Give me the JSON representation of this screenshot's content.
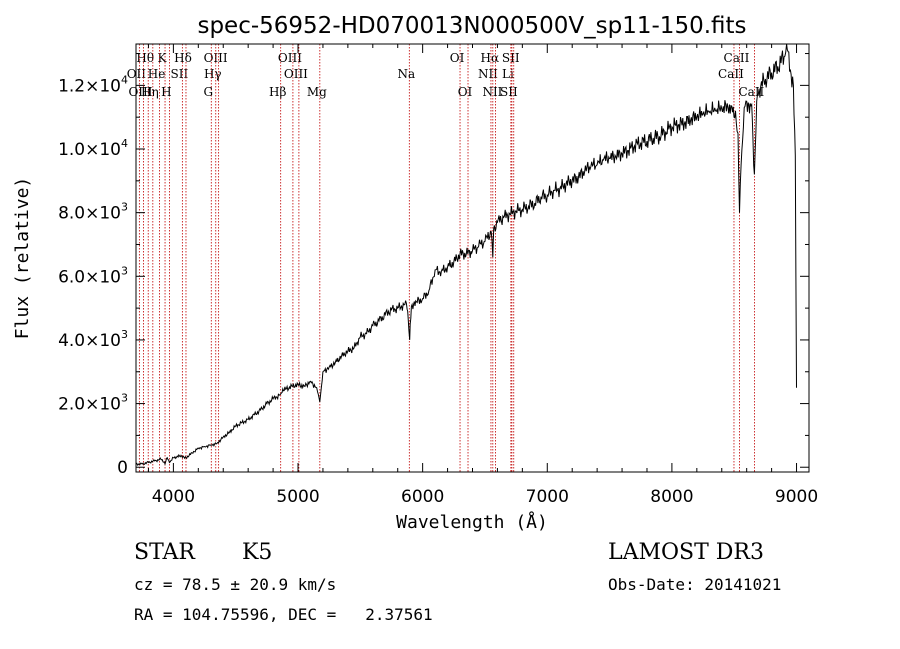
{
  "chart_data": {
    "type": "line",
    "title": "spec-56952-HD070013N000500V_sp11-150.fits",
    "xlabel": "Wavelength (Å)",
    "ylabel": "Flux (relative)",
    "xlim": [
      3700,
      9100
    ],
    "ylim": [
      -150,
      13300
    ],
    "x_ticks": [
      {
        "value": 4000,
        "label": "4000"
      },
      {
        "value": 5000,
        "label": "5000"
      },
      {
        "value": 6000,
        "label": "6000"
      },
      {
        "value": 7000,
        "label": "7000"
      },
      {
        "value": 8000,
        "label": "8000"
      },
      {
        "value": 9000,
        "label": "9000"
      }
    ],
    "y_ticks": [
      {
        "value": 0,
        "mant": "0",
        "exp": ""
      },
      {
        "value": 2000,
        "mant": "2.0×10",
        "exp": "3"
      },
      {
        "value": 4000,
        "mant": "4.0×10",
        "exp": "3"
      },
      {
        "value": 6000,
        "mant": "6.0×10",
        "exp": "3"
      },
      {
        "value": 8000,
        "mant": "8.0×10",
        "exp": "3"
      },
      {
        "value": 10000,
        "mant": "1.0×10",
        "exp": "4"
      },
      {
        "value": 12000,
        "mant": "1.2×10",
        "exp": "4"
      }
    ],
    "series": [
      {
        "name": "spectrum",
        "x": [
          3700,
          3750,
          3800,
          3850,
          3900,
          3933,
          3950,
          3968,
          4000,
          4050,
          4101,
          4150,
          4200,
          4250,
          4300,
          4350,
          4400,
          4450,
          4500,
          4550,
          4600,
          4650,
          4700,
          4750,
          4800,
          4861,
          4900,
          4950,
          5000,
          5050,
          5100,
          5150,
          5175,
          5200,
          5250,
          5300,
          5350,
          5400,
          5450,
          5500,
          5550,
          5600,
          5650,
          5700,
          5750,
          5800,
          5850,
          5870,
          5880,
          5890,
          5896,
          5900,
          5910,
          5950,
          6000,
          6050,
          6100,
          6150,
          6200,
          6250,
          6300,
          6350,
          6400,
          6450,
          6500,
          6550,
          6563,
          6570,
          6600,
          6650,
          6700,
          6750,
          6800,
          6850,
          6900,
          6950,
          7000,
          7050,
          7100,
          7150,
          7200,
          7250,
          7300,
          7350,
          7400,
          7450,
          7500,
          7550,
          7600,
          7650,
          7700,
          7750,
          7800,
          7850,
          7900,
          7950,
          8000,
          8050,
          8100,
          8150,
          8200,
          8250,
          8300,
          8350,
          8400,
          8450,
          8480,
          8498,
          8510,
          8530,
          8542,
          8555,
          8580,
          8600,
          8640,
          8662,
          8680,
          8700,
          8750,
          8800,
          8850,
          8900,
          8920,
          8950,
          8975,
          8990,
          9000
        ],
        "y": [
          100,
          100,
          150,
          200,
          250,
          100,
          300,
          150,
          300,
          350,
          300,
          450,
          600,
          650,
          700,
          750,
          950,
          1100,
          1300,
          1400,
          1500,
          1650,
          1800,
          2000,
          2150,
          2300,
          2450,
          2550,
          2600,
          2550,
          2700,
          2500,
          2050,
          3000,
          3150,
          3300,
          3500,
          3650,
          3750,
          4100,
          4200,
          4450,
          4600,
          4800,
          4950,
          5000,
          5100,
          5150,
          4900,
          4300,
          4000,
          4500,
          5050,
          5200,
          5300,
          5550,
          6200,
          6150,
          6300,
          6450,
          6700,
          6700,
          6800,
          6950,
          7100,
          7400,
          6600,
          7500,
          7700,
          7850,
          7950,
          8050,
          8100,
          8200,
          8300,
          8500,
          8550,
          8700,
          8750,
          8900,
          9000,
          9100,
          9300,
          9450,
          9500,
          9650,
          9700,
          9750,
          9850,
          9950,
          10100,
          10200,
          10250,
          10350,
          10400,
          10550,
          10700,
          10750,
          10800,
          10900,
          11000,
          11100,
          11150,
          11200,
          11250,
          11300,
          11350,
          11000,
          11200,
          10500,
          8000,
          9500,
          11300,
          11500,
          11400,
          9200,
          11500,
          11900,
          12200,
          12400,
          12600,
          12900,
          13300,
          12500,
          12000,
          9800,
          2500
        ]
      }
    ],
    "spectral_lines": [
      {
        "name": "Hθ",
        "x": 3798,
        "row": 1
      },
      {
        "name": "OII",
        "x": 3727,
        "row": 2
      },
      {
        "name": "OIII",
        "x": 3760,
        "row": 3
      },
      {
        "name": "K",
        "x": 3933,
        "row": 1
      },
      {
        "name": "He",
        "x": 3889,
        "row": 2
      },
      {
        "name": "Hη",
        "x": 3835,
        "row": 3
      },
      {
        "name": "SII",
        "x": 4072,
        "row": 2
      },
      {
        "name": "H",
        "x": 3968,
        "row": 3
      },
      {
        "name": "Hδ",
        "x": 4101,
        "row": 1
      },
      {
        "name": "OIII",
        "x": 4363,
        "row": 1
      },
      {
        "name": "Hγ",
        "x": 4340,
        "row": 2
      },
      {
        "name": "G",
        "x": 4304,
        "row": 3
      },
      {
        "name": "OIII",
        "x": 4959,
        "row": 1
      },
      {
        "name": "OIII",
        "x": 5007,
        "row": 2
      },
      {
        "name": "Hβ",
        "x": 4861,
        "row": 3
      },
      {
        "name": "Mg",
        "x": 5175,
        "row": 3
      },
      {
        "name": "Na",
        "x": 5893,
        "row": 2
      },
      {
        "name": "OI",
        "x": 6300,
        "row": 1
      },
      {
        "name": "OI",
        "x": 6364,
        "row": 3
      },
      {
        "name": "Hα",
        "x": 6563,
        "row": 1
      },
      {
        "name": "SII",
        "x": 6731,
        "row": 1
      },
      {
        "name": "NII",
        "x": 6548,
        "row": 2
      },
      {
        "name": "Li",
        "x": 6708,
        "row": 2
      },
      {
        "name": "NII",
        "x": 6584,
        "row": 3
      },
      {
        "name": "SII",
        "x": 6716,
        "row": 3
      },
      {
        "name": "CaII",
        "x": 8542,
        "row": 1
      },
      {
        "name": "CaII",
        "x": 8498,
        "row": 2
      },
      {
        "name": "CaII",
        "x": 8662,
        "row": 3
      }
    ]
  },
  "info": {
    "obj_class": "STAR",
    "subclass": "K5",
    "survey": "LAMOST DR3",
    "cz": "cz = 78.5 ± 20.9 km/s",
    "obs_date": "Obs-Date: 20141021",
    "radec": "RA = 104.75596, DEC =   2.37561"
  },
  "colors": {
    "axis": "#000000",
    "spectrum": "#000000",
    "line_marker": "#c00000"
  }
}
